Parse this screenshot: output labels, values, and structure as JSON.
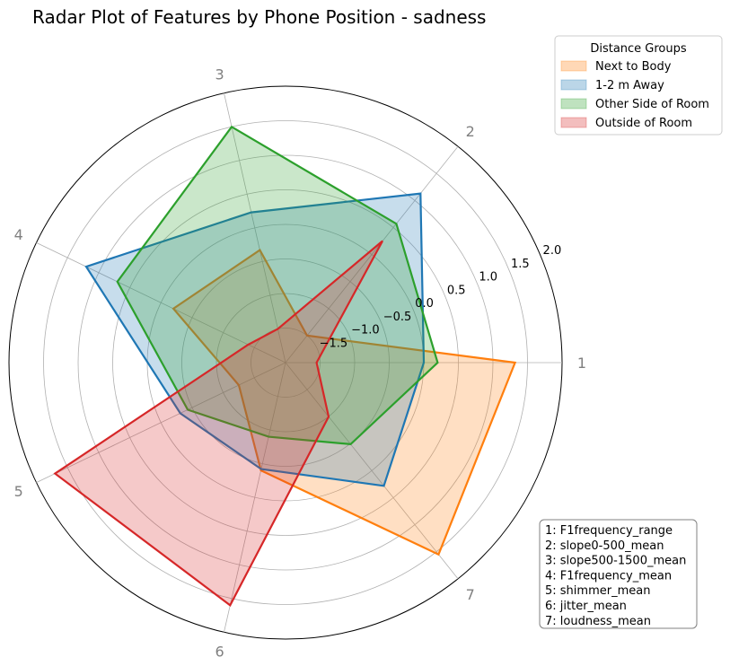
{
  "chart_data": {
    "type": "radar",
    "title": "Radar Plot of Features by Phone Position - sadness",
    "axes": [
      "1",
      "2",
      "3",
      "4",
      "5",
      "6",
      "7"
    ],
    "features": [
      "1: F1frequency_range",
      "2: slope0-500_mean",
      "3: slope500-1500_mean",
      "4: F1frequency_mean",
      "5: shimmer_mean",
      "6: jitter_mean",
      "7: loudness_mean"
    ],
    "rlim": [
      -2.0,
      2.0
    ],
    "radial_ticks": [
      -1.5,
      -1.0,
      -0.5,
      0.0,
      0.5,
      1.0,
      1.5,
      2.0
    ],
    "radial_tick_labels": [
      "−1.5",
      "−1.0",
      "−0.5",
      "0.0",
      "0.5",
      "1.0",
      "1.5",
      "2.0"
    ],
    "legend_title": "Distance Groups",
    "legend_location": "upper right",
    "grid": true,
    "series": [
      {
        "name": "Next to Body",
        "color": "#ff7f0e",
        "values": [
          1.32,
          -1.5,
          -0.33,
          -0.2,
          -1.25,
          -0.4,
          1.55
        ]
      },
      {
        "name": "1-2 m Away",
        "color": "#1f77b4",
        "values": [
          0.0,
          1.13,
          0.23,
          1.2,
          -0.31,
          -0.42,
          0.28
        ]
      },
      {
        "name": "Other Side of Room",
        "color": "#2ca02c",
        "values": [
          0.2,
          0.57,
          1.5,
          0.7,
          -0.43,
          -0.9,
          -0.49
        ]
      },
      {
        "name": "Outside of Room",
        "color": "#d62728",
        "values": [
          -1.55,
          0.25,
          -1.5,
          -1.4,
          1.7,
          1.6,
          -1.0
        ]
      }
    ]
  }
}
